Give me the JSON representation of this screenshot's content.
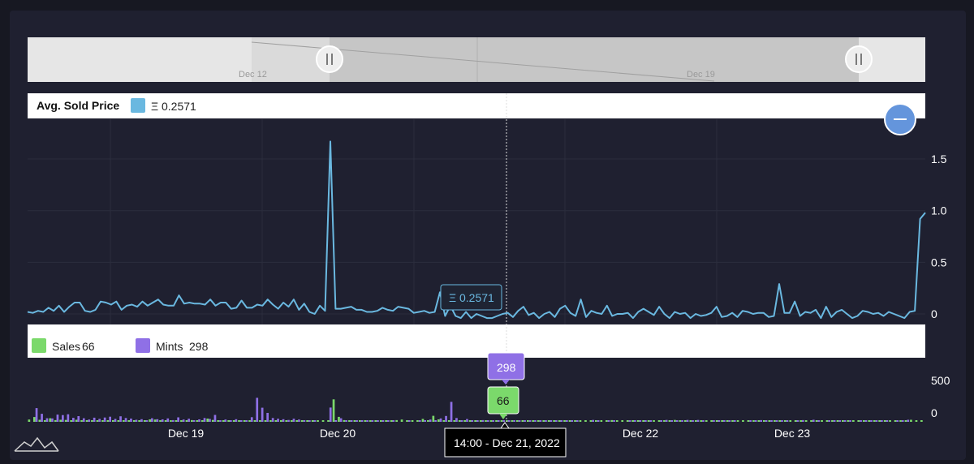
{
  "chart_data": {
    "type": "line+bar",
    "navigator": {
      "labels": [
        "Dec 12",
        "Dec 19"
      ]
    },
    "price_panel": {
      "legend_title": "Avg. Sold Price",
      "legend_value": "Ξ 0.2571",
      "y_ticks": [
        "1.5",
        "1.0",
        "0.5",
        "0"
      ],
      "ylim": [
        0,
        1.7
      ],
      "series_color": "#6ab8e0",
      "values": [
        0.02,
        0.01,
        0.03,
        0.02,
        0.06,
        0.03,
        0.08,
        0.02,
        0.07,
        0.11,
        0.11,
        0.03,
        0.02,
        0.04,
        0.12,
        0.11,
        0.09,
        0.12,
        0.04,
        0.08,
        0.09,
        0.07,
        0.12,
        0.08,
        0.11,
        0.14,
        0.09,
        0.08,
        0.08,
        0.18,
        0.1,
        0.11,
        0.1,
        0.1,
        0.09,
        0.14,
        0.08,
        0.11,
        0.11,
        0.05,
        0.06,
        0.13,
        0.06,
        0.06,
        0.09,
        0.08,
        0.14,
        0.09,
        0.05,
        0.11,
        0.07,
        0.14,
        0.04,
        0.1,
        0.02,
        0.0,
        0.08,
        0.03,
        1.67,
        0.05,
        0.05,
        0.06,
        0.07,
        0.04,
        0.04,
        0.02,
        0.02,
        0.03,
        0.06,
        0.04,
        0.03,
        0.07,
        0.06,
        0.05,
        0.01,
        0.02,
        0.03,
        0.01,
        0.02,
        0.21,
        -0.02,
        0.08,
        -0.02,
        -0.04,
        0.02,
        -0.04,
        0.0,
        -0.02,
        -0.04,
        -0.04,
        -0.02,
        0.0,
        0.01,
        -0.03,
        0.03,
        0.07,
        -0.01,
        0.01,
        -0.04,
        0.0,
        0.02,
        -0.03,
        0.05,
        0.08,
        0.01,
        -0.02,
        0.14,
        -0.03,
        0.03,
        0.01,
        0.0,
        0.08,
        -0.02,
        0.0,
        0.0,
        0.01,
        -0.04,
        0.02,
        0.05,
        0.02,
        -0.01,
        0.07,
        0.0,
        -0.04,
        0.02,
        0.0,
        0.01,
        -0.04,
        0.0,
        -0.02,
        -0.01,
        0.01,
        0.07,
        -0.03,
        -0.02,
        0.01,
        -0.03,
        0.03,
        0.02,
        0.0,
        0.01,
        0.01,
        -0.03,
        -0.02,
        0.29,
        0.01,
        0.01,
        0.12,
        -0.02,
        0.02,
        0.01,
        0.04,
        -0.04,
        0.07,
        -0.03,
        0.02,
        0.04,
        0.0,
        -0.04,
        -0.02,
        0.03,
        0.02,
        0.0,
        0.01,
        -0.02,
        0.02,
        0.0,
        -0.02,
        -0.04,
        0.02,
        0.03,
        0.92,
        0.98
      ],
      "hover_label": "Ξ 0.2571"
    },
    "volume_panel": {
      "legend": [
        {
          "name": "Sales",
          "value": "66",
          "color": "#7bd96b"
        },
        {
          "name": "Mints",
          "value": "298",
          "color": "#8f70e6"
        }
      ],
      "y_ticks": [
        "500",
        "0"
      ],
      "ylim": [
        0,
        500
      ],
      "sales": [
        13,
        28,
        12,
        5,
        21,
        10,
        12,
        11,
        7,
        12,
        8,
        0,
        0,
        5,
        5,
        0,
        0,
        0,
        0,
        4,
        3,
        2,
        8,
        14,
        13,
        4,
        4,
        0,
        3,
        1,
        5,
        10,
        5,
        0,
        19,
        11,
        0,
        0,
        1,
        0,
        1,
        0,
        3,
        5,
        0,
        0,
        0,
        0,
        0,
        0,
        0,
        0,
        0,
        0,
        0,
        0,
        0,
        0,
        131,
        29,
        10,
        5,
        0,
        0,
        0,
        1,
        0,
        6,
        7,
        0,
        10,
        13,
        3,
        5,
        0,
        17,
        1,
        35,
        14,
        7,
        8,
        5,
        3,
        7,
        2,
        6,
        4,
        7,
        3,
        6,
        3,
        0,
        3,
        0,
        8,
        0,
        5,
        5,
        2,
        2,
        2,
        6,
        4,
        2,
        7,
        5,
        6,
        0,
        2,
        4,
        3,
        10,
        5,
        3,
        2,
        3,
        6,
        3,
        4,
        2,
        5,
        3,
        3,
        11,
        2,
        5,
        3,
        4,
        4,
        2,
        6,
        4,
        5,
        5,
        3,
        3,
        4,
        3,
        5,
        7,
        4,
        2,
        0,
        2,
        2,
        6,
        2,
        3,
        1,
        0,
        7,
        3,
        4,
        5,
        6,
        6,
        2,
        3,
        4,
        6,
        2,
        2,
        3,
        4,
        8,
        1,
        4,
        8,
        12,
        7
      ],
      "mints": [
        0,
        80,
        47,
        21,
        20,
        42,
        39,
        44,
        23,
        33,
        21,
        13,
        24,
        17,
        25,
        30,
        17,
        32,
        22,
        19,
        12,
        15,
        7,
        21,
        15,
        14,
        20,
        10,
        26,
        13,
        18,
        7,
        14,
        22,
        17,
        40,
        2,
        13,
        8,
        15,
        2,
        3,
        27,
        140,
        82,
        52,
        22,
        18,
        15,
        11,
        18,
        13,
        7,
        5,
        6,
        0,
        0,
        83,
        5,
        21,
        2,
        1,
        3,
        2,
        2,
        5,
        4,
        2,
        3,
        5,
        0,
        0,
        4,
        0,
        4,
        9,
        13,
        7,
        20,
        34,
        116,
        22,
        8,
        16,
        5,
        8,
        10,
        8,
        3,
        7,
        8,
        7,
        5,
        3,
        4,
        2,
        4,
        1,
        5,
        2,
        8,
        4,
        8,
        4,
        6,
        0,
        0,
        11,
        8,
        0,
        7,
        8,
        0,
        0,
        4,
        7,
        9,
        4,
        9,
        0,
        7,
        11,
        2,
        3,
        8,
        11,
        7,
        11,
        8,
        0,
        4,
        8,
        9,
        3,
        2,
        0,
        0,
        5,
        2,
        10,
        6,
        3,
        8,
        9,
        3,
        0,
        5,
        10,
        0,
        12,
        3,
        0,
        6,
        4,
        3,
        8,
        4,
        0,
        5,
        3,
        3,
        4,
        2,
        6,
        0,
        2,
        4,
        12,
        0,
        0,
        0
      ],
      "hover_sales": "66",
      "hover_mints": "298"
    },
    "x_ticks": [
      "Dec 19",
      "Dec 20",
      "Dec 21",
      "Dec 22",
      "Dec 23"
    ],
    "tooltip_date": "14:00 - Dec 21, 2022"
  },
  "icons": {
    "zoom_out": "minus-circle-icon",
    "logo": "mountain-logo-icon"
  }
}
